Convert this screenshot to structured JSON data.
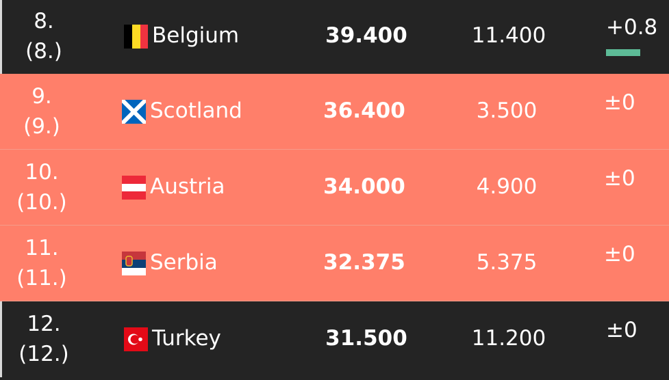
{
  "table": {
    "rows": [
      [
        "8.",
        "(8.)",
        "Belgium",
        "39.400",
        "11.400",
        "+0.8"
      ],
      [
        "9.",
        "(9.)",
        "Scotland",
        "36.400",
        "3.500",
        "±0"
      ],
      [
        "10.",
        "(10.)",
        "Austria",
        "34.000",
        "4.900",
        "±0"
      ],
      [
        "11.",
        "(11.)",
        "Serbia",
        "32.375",
        "5.375",
        "±0"
      ],
      [
        "12.",
        "(12.)",
        "Turkey",
        "31.500",
        "11.200",
        "±0"
      ]
    ]
  }
}
